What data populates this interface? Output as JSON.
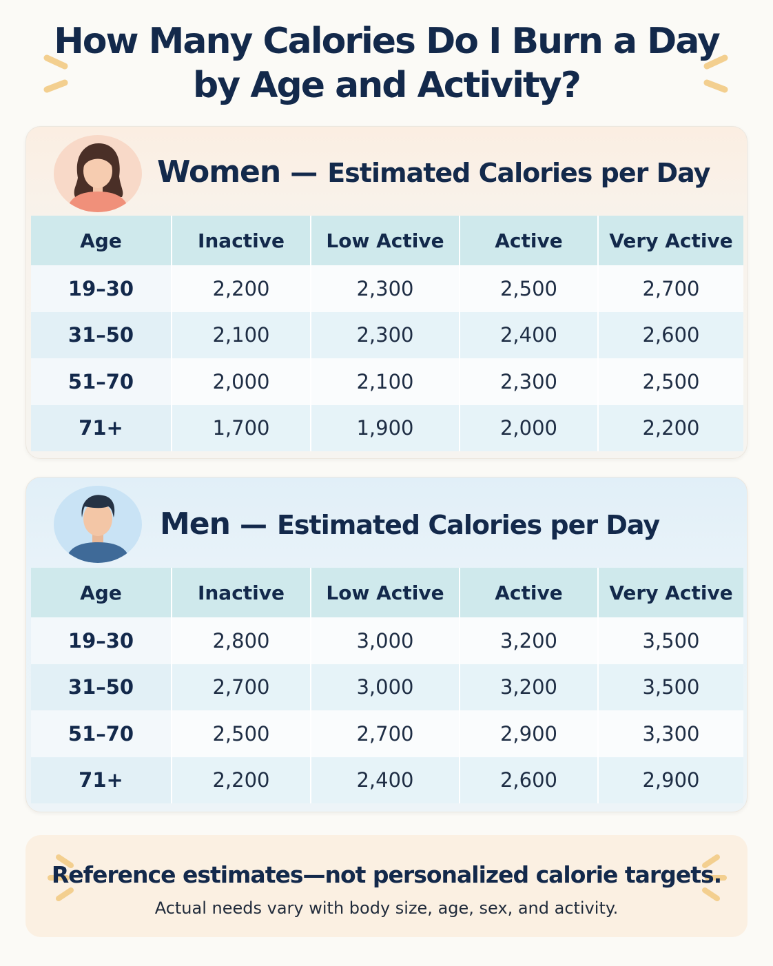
{
  "title_line1": "How Many Calories Do I Burn a Day",
  "title_line2": "by Age and Activity?",
  "columns": [
    "Age",
    "Inactive",
    "Low Active",
    "Active",
    "Very Active"
  ],
  "women": {
    "gender": "Women",
    "dash": "—",
    "subtitle": "Estimated Calories per Day",
    "rows": [
      {
        "age": "19–30",
        "inactive": "2,200",
        "low_active": "2,300",
        "active": "2,500",
        "very_active": "2,700"
      },
      {
        "age": "31–50",
        "inactive": "2,100",
        "low_active": "2,300",
        "active": "2,400",
        "very_active": "2,600"
      },
      {
        "age": "51–70",
        "inactive": "2,000",
        "low_active": "2,100",
        "active": "2,300",
        "very_active": "2,500"
      },
      {
        "age": "71+",
        "inactive": "1,700",
        "low_active": "1,900",
        "active": "2,000",
        "very_active": "2,200"
      }
    ]
  },
  "men": {
    "gender": "Men",
    "dash": "—",
    "subtitle": "Estimated Calories per Day",
    "rows": [
      {
        "age": "19–30",
        "inactive": "2,800",
        "low_active": "3,000",
        "active": "3,200",
        "very_active": "3,500"
      },
      {
        "age": "31–50",
        "inactive": "2,700",
        "low_active": "3,000",
        "active": "3,200",
        "very_active": "3,500"
      },
      {
        "age": "51–70",
        "inactive": "2,500",
        "low_active": "2,700",
        "active": "2,900",
        "very_active": "3,300"
      },
      {
        "age": "71+",
        "inactive": "2,200",
        "low_active": "2,400",
        "active": "2,600",
        "very_active": "2,900"
      }
    ]
  },
  "footer": {
    "main": "Reference estimates—not personalized calorie targets.",
    "sub": "Actual needs vary with body size, age, sex, and activity."
  },
  "icons": {
    "women_avatar": "woman-avatar-icon",
    "men_avatar": "man-avatar-icon",
    "sparkle": "sparkle-icon"
  },
  "colors": {
    "title": "#13294b",
    "header_row": "#cfe9ec",
    "women_panel": "#f8f3ec",
    "men_panel": "#e9f3f9",
    "footer_panel": "#fbf0e2",
    "sparkle": "#f3cf8f"
  }
}
